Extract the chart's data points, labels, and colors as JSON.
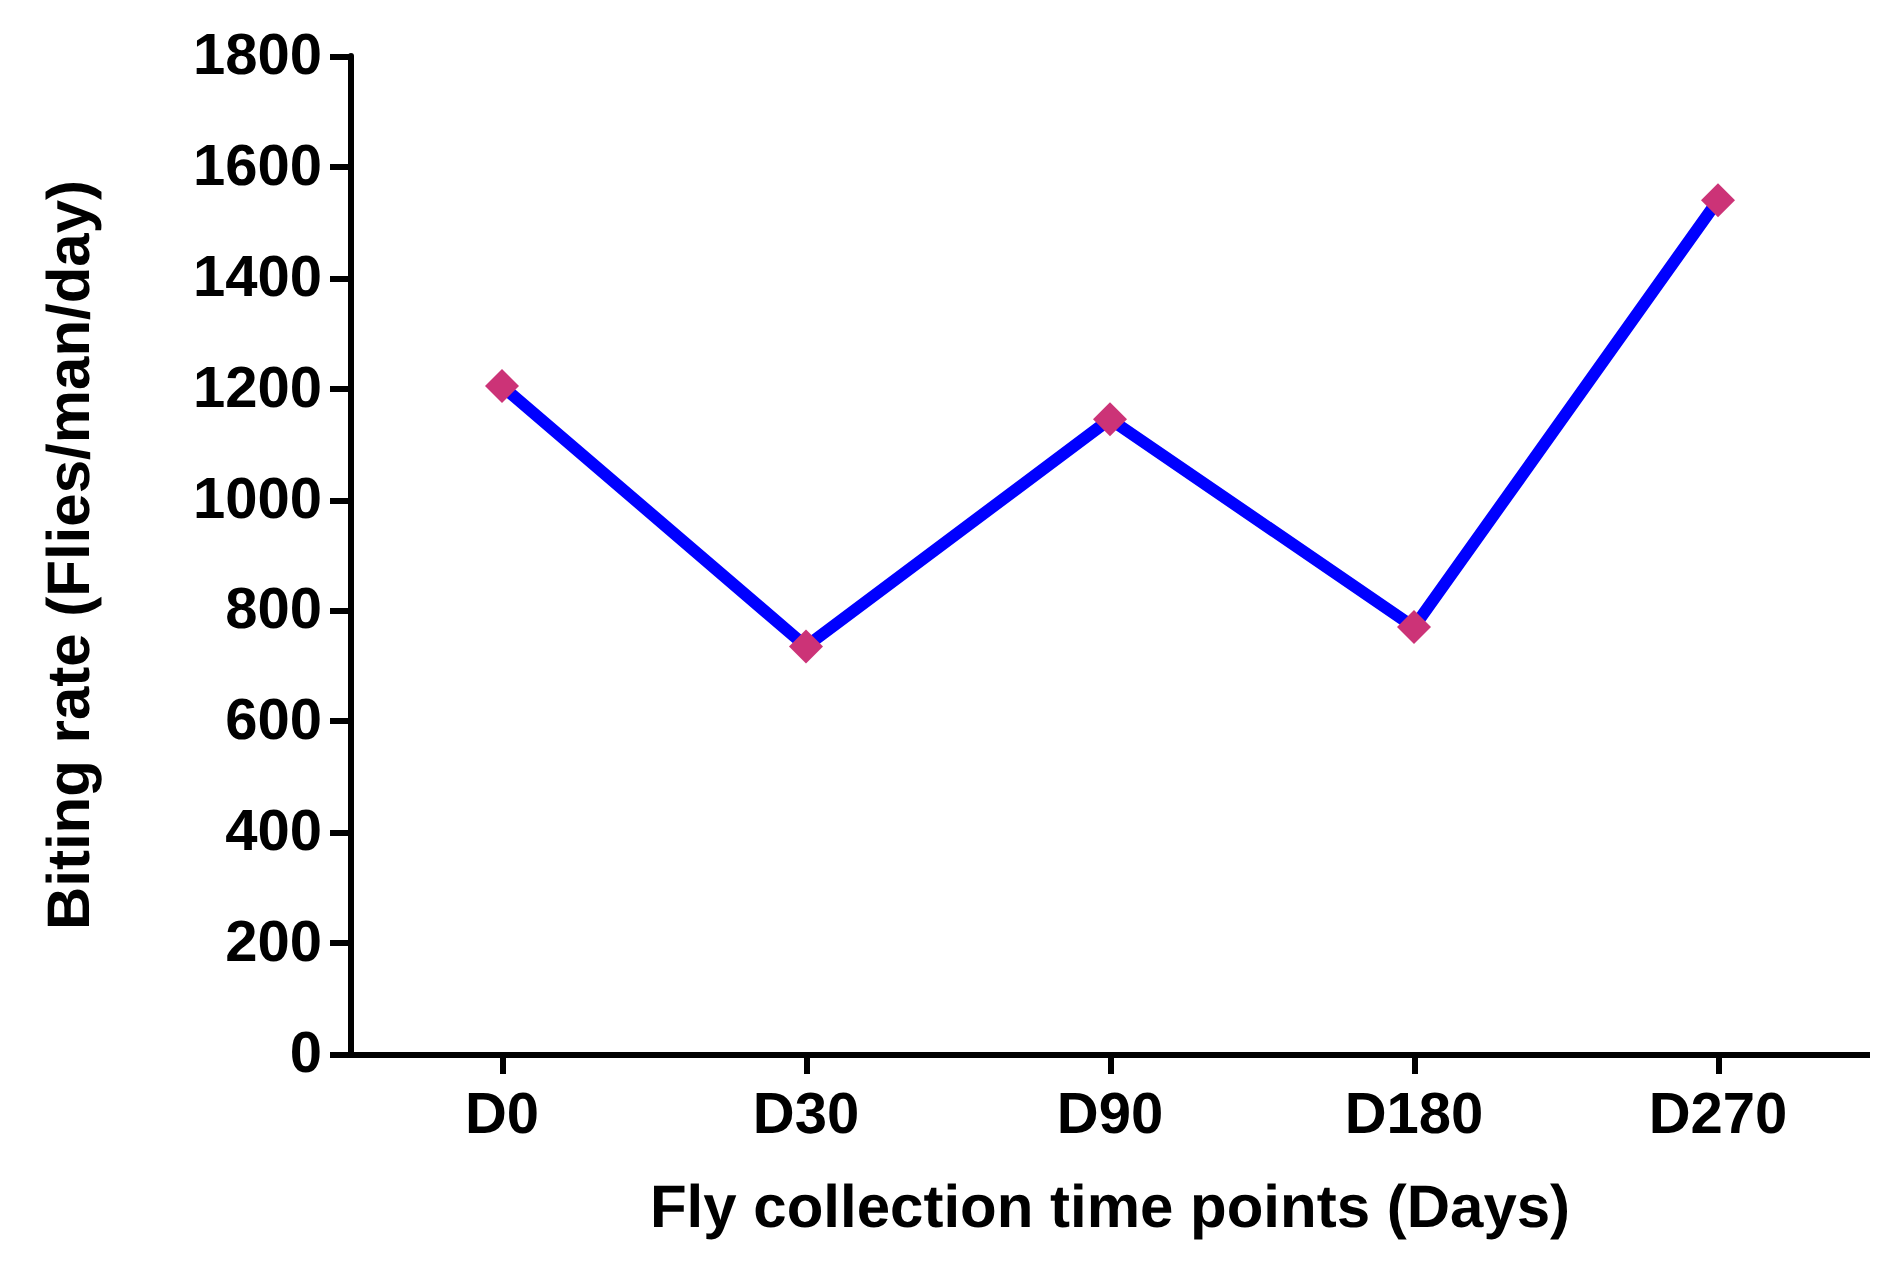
{
  "chart_data": {
    "type": "line",
    "xlabel": "Fly collection time points (Days)",
    "ylabel": "Biting rate (Flies/man/day)",
    "categories": [
      "D0",
      "D30",
      "D90",
      "D180",
      "D270"
    ],
    "series": [
      {
        "color": "#0000ff",
        "marker": "none",
        "values": [
          1205,
          735,
          1145,
          770,
          1540
        ]
      },
      {
        "type": "scatter",
        "color": "#cc3377",
        "x": [
          "D0",
          "D30",
          "D90",
          "D180",
          "D270"
        ],
        "values": [
          1205,
          735,
          1145,
          770,
          1540
        ]
      }
    ],
    "ylim": [
      0,
      1800
    ],
    "yticks": [
      0,
      200,
      400,
      600,
      800,
      1000,
      1200,
      1400,
      1600,
      1800
    ],
    "grid": false,
    "marker": "diamond",
    "line_style": "solid"
  }
}
